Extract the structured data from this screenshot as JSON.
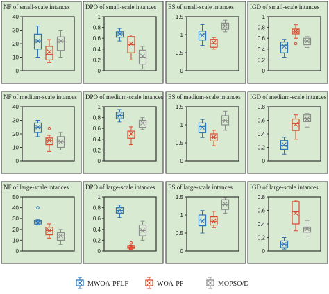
{
  "chart_data": [
    {
      "type": "box",
      "title": "NF of small-scale intances",
      "ylim": [
        0,
        40
      ],
      "yticks": [
        0,
        10,
        20,
        30,
        40
      ],
      "series": [
        {
          "whisker_low": 10,
          "q1": 16,
          "median": 22,
          "q3": 27,
          "whisker_high": 33,
          "mean": 22
        },
        {
          "whisker_low": 6,
          "q1": 8,
          "median": 12,
          "q3": 18,
          "whisker_high": 23,
          "mean": 14
        },
        {
          "whisker_low": 10,
          "q1": 15,
          "median": 22,
          "q3": 25,
          "whisker_high": 30,
          "mean": 22
        }
      ]
    },
    {
      "type": "box",
      "title": "DPO of small-scale intances",
      "ylim": [
        0,
        1
      ],
      "yticks": [
        0,
        0.2,
        0.4,
        0.6,
        0.8,
        1
      ],
      "series": [
        {
          "whisker_low": 0.55,
          "q1": 0.62,
          "median": 0.68,
          "q3": 0.72,
          "whisker_high": 0.78,
          "mean": 0.68
        },
        {
          "whisker_low": 0.2,
          "q1": 0.33,
          "median": 0.48,
          "q3": 0.63,
          "whisker_high": 0.66,
          "mean": 0.5
        },
        {
          "whisker_low": 0.03,
          "q1": 0.12,
          "median": 0.25,
          "q3": 0.38,
          "whisker_high": 0.45,
          "mean": 0.27
        }
      ]
    },
    {
      "type": "box",
      "title": "ES of small-scale intances",
      "ylim": [
        0,
        1.5
      ],
      "yticks": [
        0,
        0.5,
        1,
        1.5
      ],
      "series": [
        {
          "whisker_low": 0.7,
          "q1": 0.85,
          "median": 1,
          "q3": 1.1,
          "whisker_high": 1.28,
          "mean": 0.98
        },
        {
          "whisker_low": 0.6,
          "q1": 0.65,
          "median": 0.75,
          "q3": 0.87,
          "whisker_high": 0.92,
          "mean": 0.78
        },
        {
          "whisker_low": 1.08,
          "q1": 1.15,
          "median": 1.25,
          "q3": 1.32,
          "whisker_high": 1.4,
          "mean": 1.24
        }
      ]
    },
    {
      "type": "box",
      "title": "IGD of small-scale intances",
      "ylim": [
        0,
        1
      ],
      "yticks": [
        0,
        0.2,
        0.4,
        0.6,
        0.8,
        1
      ],
      "series": [
        {
          "whisker_low": 0.25,
          "q1": 0.33,
          "median": 0.47,
          "q3": 0.53,
          "whisker_high": 0.58,
          "mean": 0.45
        },
        {
          "whisker_low": 0.6,
          "q1": 0.68,
          "median": 0.72,
          "q3": 0.77,
          "whisker_high": 0.85,
          "mean": 0.73,
          "outliers": [
            0.5
          ]
        },
        {
          "whisker_low": 0.43,
          "q1": 0.48,
          "median": 0.55,
          "q3": 0.6,
          "whisker_high": 0.63,
          "mean": 0.55
        }
      ]
    },
    {
      "type": "box",
      "title": "NF of medium-scale intances",
      "ylim": [
        0,
        40
      ],
      "yticks": [
        0,
        10,
        20,
        30,
        40
      ],
      "series": [
        {
          "whisker_low": 18,
          "q1": 21,
          "median": 25,
          "q3": 28,
          "whisker_high": 30,
          "mean": 25
        },
        {
          "whisker_low": 7,
          "q1": 12,
          "median": 15,
          "q3": 17,
          "whisker_high": 19,
          "mean": 15,
          "outliers": [
            24
          ]
        },
        {
          "whisker_low": 8,
          "q1": 10,
          "median": 14,
          "q3": 18,
          "whisker_high": 21,
          "mean": 14
        }
      ]
    },
    {
      "type": "box",
      "title": "DPO of medium-scale intances",
      "ylim": [
        0,
        1
      ],
      "yticks": [
        0,
        0.2,
        0.4,
        0.6,
        0.8,
        1
      ],
      "series": [
        {
          "whisker_low": 0.72,
          "q1": 0.78,
          "median": 0.84,
          "q3": 0.9,
          "whisker_high": 0.95,
          "mean": 0.84
        },
        {
          "whisker_low": 0.3,
          "q1": 0.42,
          "median": 0.48,
          "q3": 0.55,
          "whisker_high": 0.63,
          "mean": 0.5
        },
        {
          "whisker_low": 0.58,
          "q1": 0.62,
          "median": 0.7,
          "q3": 0.75,
          "whisker_high": 0.8,
          "mean": 0.7
        }
      ]
    },
    {
      "type": "box",
      "title": "ES of medium-scale intances",
      "ylim": [
        0,
        1.5
      ],
      "yticks": [
        0,
        0.5,
        1,
        1.5
      ],
      "series": [
        {
          "whisker_low": 0.65,
          "q1": 0.78,
          "median": 0.95,
          "q3": 1.05,
          "whisker_high": 1.15,
          "mean": 0.93
        },
        {
          "whisker_low": 0.42,
          "q1": 0.55,
          "median": 0.65,
          "q3": 0.75,
          "whisker_high": 0.85,
          "mean": 0.66
        },
        {
          "whisker_low": 0.85,
          "q1": 1,
          "median": 1.12,
          "q3": 1.25,
          "whisker_high": 1.38,
          "mean": 1.12
        }
      ]
    },
    {
      "type": "box",
      "title": "IGD of medium-scale intances",
      "ylim": [
        0,
        0.8
      ],
      "yticks": [
        0,
        0.2,
        0.4,
        0.6,
        0.8
      ],
      "series": [
        {
          "whisker_low": 0.1,
          "q1": 0.17,
          "median": 0.23,
          "q3": 0.3,
          "whisker_high": 0.35,
          "mean": 0.24
        },
        {
          "whisker_low": 0.32,
          "q1": 0.45,
          "median": 0.55,
          "q3": 0.62,
          "whisker_high": 0.68,
          "mean": 0.54
        },
        {
          "whisker_low": 0.5,
          "q1": 0.58,
          "median": 0.63,
          "q3": 0.68,
          "whisker_high": 0.7,
          "mean": 0.62
        }
      ]
    },
    {
      "type": "box",
      "title": "NF of large-scale intances",
      "ylim": [
        0,
        50
      ],
      "yticks": [
        0,
        10,
        20,
        30,
        40,
        50
      ],
      "series": [
        {
          "whisker_low": 24,
          "q1": 25,
          "median": 27,
          "q3": 28,
          "whisker_high": 29,
          "mean": 26,
          "outliers": [
            40
          ]
        },
        {
          "whisker_low": 12,
          "q1": 15,
          "median": 19,
          "q3": 22,
          "whisker_high": 25,
          "mean": 19
        },
        {
          "whisker_low": 6,
          "q1": 10,
          "median": 14,
          "q3": 17,
          "whisker_high": 20,
          "mean": 14
        }
      ]
    },
    {
      "type": "box",
      "title": "DPO of large-scale intances",
      "ylim": [
        0,
        1
      ],
      "yticks": [
        0,
        0.2,
        0.4,
        0.6,
        0.8,
        1
      ],
      "series": [
        {
          "whisker_low": 0.62,
          "q1": 0.7,
          "median": 0.75,
          "q3": 0.8,
          "whisker_high": 0.85,
          "mean": 0.75
        },
        {
          "whisker_low": 0.03,
          "q1": 0.05,
          "median": 0.07,
          "q3": 0.09,
          "whisker_high": 0.1,
          "mean": 0.07,
          "outliers": [
            0.15
          ]
        },
        {
          "whisker_low": 0.2,
          "q1": 0.28,
          "median": 0.38,
          "q3": 0.48,
          "whisker_high": 0.55,
          "mean": 0.38
        }
      ]
    },
    {
      "type": "box",
      "title": "ES of large-scale intances",
      "ylim": [
        0,
        1.5
      ],
      "yticks": [
        0,
        0.5,
        1,
        1.5
      ],
      "series": [
        {
          "whisker_low": 0.5,
          "q1": 0.7,
          "median": 0.85,
          "q3": 1,
          "whisker_high": 1.12,
          "mean": 0.83
        },
        {
          "whisker_low": 0.65,
          "q1": 0.72,
          "median": 0.82,
          "q3": 0.95,
          "whisker_high": 1.1,
          "mean": 0.83
        },
        {
          "whisker_low": 1.05,
          "q1": 1.15,
          "median": 1.3,
          "q3": 1.42,
          "whisker_high": 1.48,
          "mean": 1.3
        }
      ]
    },
    {
      "type": "box",
      "title": "IGD of large-scale intances",
      "ylim": [
        0,
        0.8
      ],
      "yticks": [
        0,
        0.2,
        0.4,
        0.6,
        0.8
      ],
      "series": [
        {
          "whisker_low": 0.03,
          "q1": 0.05,
          "median": 0.1,
          "q3": 0.15,
          "whisker_high": 0.2,
          "mean": 0.1
        },
        {
          "whisker_low": 0.3,
          "q1": 0.4,
          "median": 0.58,
          "q3": 0.73,
          "whisker_high": 0.75,
          "mean": 0.56
        },
        {
          "whisker_low": 0.22,
          "q1": 0.28,
          "median": 0.33,
          "q3": 0.35,
          "whisker_high": 0.45,
          "mean": 0.33
        }
      ]
    }
  ],
  "legend": [
    {
      "name": "MWOA-PFLF",
      "color": "#2e75b6"
    },
    {
      "name": "WOA-PF",
      "color": "#d9472b"
    },
    {
      "name": "MOPSO/D",
      "color": "#8c8c8c"
    }
  ]
}
